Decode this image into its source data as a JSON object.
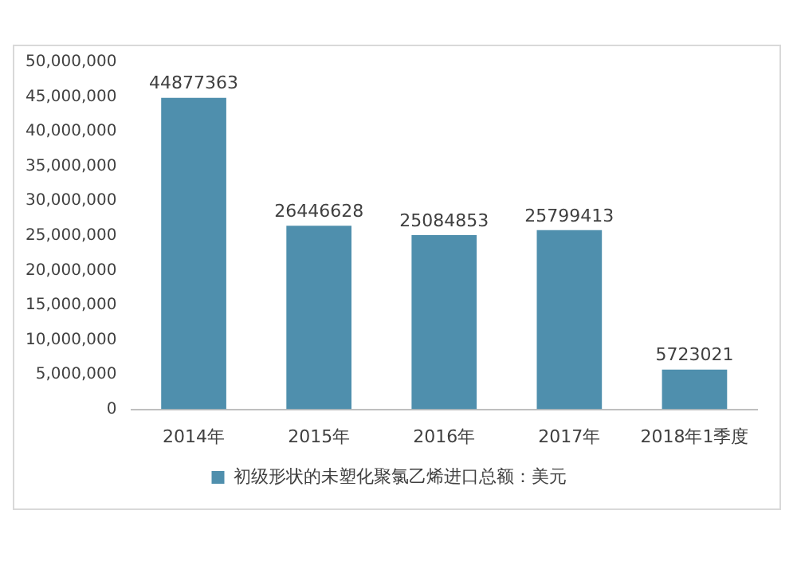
{
  "chart_data": {
    "type": "bar",
    "categories": [
      "2014年",
      "2015年",
      "2016年",
      "2017年",
      "2018年1季度"
    ],
    "series": [
      {
        "name": "初级形状的未塑化聚氯乙烯进口总额：美元",
        "color": "#4f8fad",
        "values": [
          44877363,
          26446628,
          25084853,
          25799413,
          5723021
        ]
      }
    ],
    "ylim": [
      0,
      50000000
    ],
    "yticks": [
      0,
      {
        "value": 5000000,
        "label": "5,000,000"
      },
      {
        "value": 10000000,
        "label": "10,000,000"
      },
      {
        "value": 15000000,
        "label": "15,000,000"
      },
      {
        "value": 20000000,
        "label": "20,000,000"
      },
      {
        "value": 25000000,
        "label": "25,000,000"
      },
      {
        "value": 30000000,
        "label": "30,000,000"
      },
      {
        "value": 35000000,
        "label": "35,000,000"
      },
      {
        "value": 40000000,
        "label": "40,000,000"
      },
      {
        "value": 45000000,
        "label": "45,000,000"
      },
      {
        "value": 50000000,
        "label": "50,000,000"
      }
    ],
    "grid": false,
    "legend": "bottom",
    "data_labels": true
  }
}
